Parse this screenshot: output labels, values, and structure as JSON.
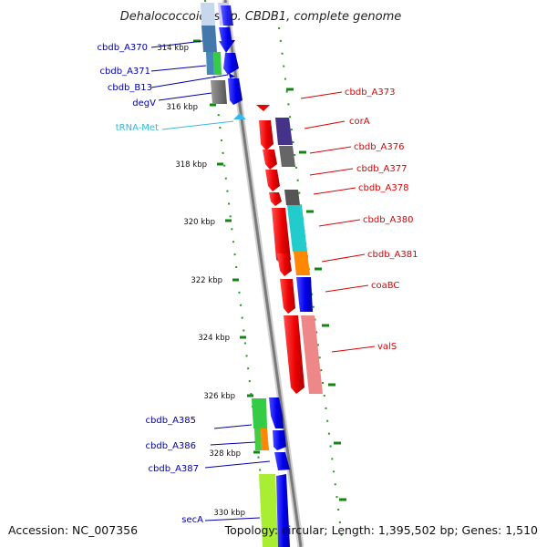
{
  "title": "Dehalococcoides sp. CBDB1, complete genome",
  "accession": "Accession: NC_007356",
  "topology": "Topology: circular; Length: 1,395,502 bp; Genes: 1,510",
  "colors": {
    "reverse_label": "#0000aa",
    "forward_label": "#dd0000",
    "trna_label": "#33bbdd",
    "tick": "#118811",
    "backbone": "#888888"
  },
  "scale_labels": [
    "314 kbp",
    "316 kbp",
    "318 kbp",
    "320 kbp",
    "322 kbp",
    "324 kbp",
    "326 kbp",
    "328 kbp",
    "330 kbp"
  ],
  "left_labels": [
    "cbdb_A370",
    "cbdb_A371",
    "cbdb_B13",
    "degV",
    "tRNA-Met",
    "cbdb_A385",
    "cbdb_A386",
    "cbdb_A387",
    "secA"
  ],
  "right_labels": [
    "cbdb_A373",
    "corA",
    "cbdb_A376",
    "cbdb_A377",
    "cbdb_A378",
    "cbdb_A380",
    "cbdb_A381",
    "coaBC",
    "valS"
  ]
}
